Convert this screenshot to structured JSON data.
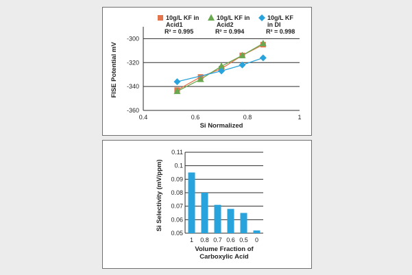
{
  "chart_data": [
    {
      "type": "line",
      "xlabel": "Si Normalized",
      "ylabel": "FISE Potential mV",
      "xlim": [
        0.4,
        1
      ],
      "ylim": [
        -360,
        -290
      ],
      "x_ticks": [
        "0.4",
        "0.6",
        "0.8",
        "1"
      ],
      "y_ticks": [
        "-300",
        "-320",
        "-340",
        "-360"
      ],
      "grid": "horizontal",
      "legend_position": "top",
      "series": [
        {
          "name": "10g/L KF in Acid1",
          "r2": "R² = 0.995",
          "color": "#e4744c",
          "marker": "square",
          "x": [
            0.53,
            0.62,
            0.7,
            0.78,
            0.86
          ],
          "y": [
            -343,
            -332,
            -325,
            -314,
            -305
          ]
        },
        {
          "name": "10g/L KF in Acid2",
          "r2": "R² = 0.994",
          "color": "#6aa84f",
          "marker": "triangle",
          "x": [
            0.53,
            0.62,
            0.7,
            0.78,
            0.86
          ],
          "y": [
            -344,
            -334,
            -323,
            -314,
            -304
          ]
        },
        {
          "name": "10g/L KF in DI",
          "r2": "R² = 0.998",
          "color": "#29a3dc",
          "marker": "diamond",
          "x": [
            0.53,
            0.7,
            0.78,
            0.86
          ],
          "y": [
            -336,
            -327,
            -322,
            -316
          ]
        }
      ]
    },
    {
      "type": "bar",
      "xlabel": "Volume Fraction of Carboxylic Acid",
      "ylabel": "Si Selectivity (mV/ppm)",
      "ylim": [
        0.05,
        0.11
      ],
      "y_ticks": [
        "0.11",
        "0.1",
        "0.09",
        "0.08",
        "0.07",
        "0.06",
        "0.05"
      ],
      "grid": "horizontal",
      "bar_color": "#29a3dc",
      "categories": [
        "1",
        "0.8",
        "0.7",
        "0.6",
        "0.5",
        "0"
      ],
      "values": [
        0.095,
        0.08,
        0.071,
        0.068,
        0.065,
        0.052
      ]
    }
  ]
}
